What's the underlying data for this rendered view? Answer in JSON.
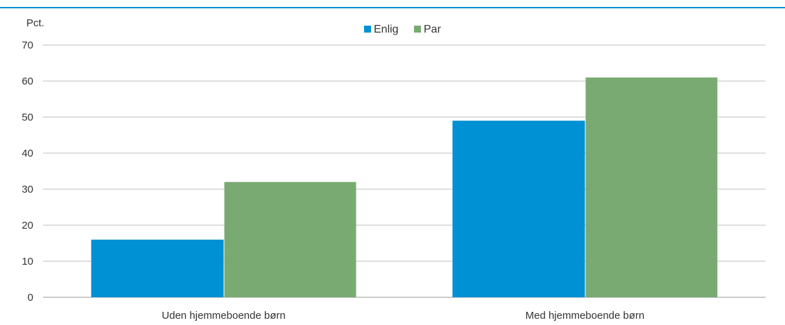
{
  "chart_data": {
    "type": "bar",
    "ylabel": "Pct.",
    "ylim": [
      0,
      70
    ],
    "yticks": [
      0,
      10,
      20,
      30,
      40,
      50,
      60,
      70
    ],
    "grid": true,
    "legend_position": "top-center",
    "categories": [
      "Uden hjemmeboende børn",
      "Med hjemmeboende børn"
    ],
    "series": [
      {
        "name": "Enlig",
        "color": "#0090d4",
        "values": [
          16,
          49
        ]
      },
      {
        "name": "Par",
        "color": "#79aa72",
        "values": [
          32,
          61
        ]
      }
    ]
  },
  "colors": {
    "accent": "#0090d4",
    "grid": "#bfbfbf",
    "text": "#333333"
  }
}
